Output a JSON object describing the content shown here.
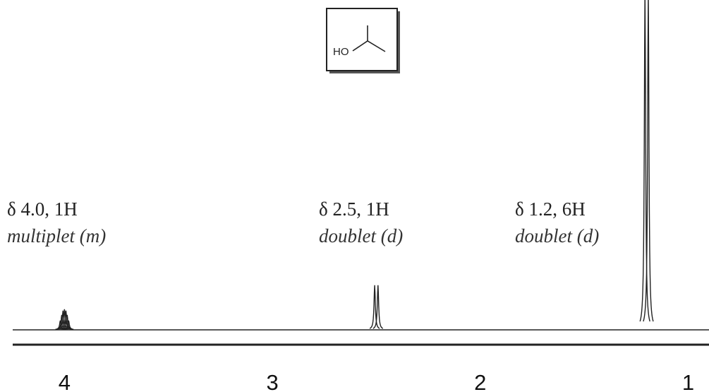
{
  "chart_data": {
    "type": "nmr-spectrum",
    "structure": {
      "label": "HO"
    },
    "xlim": [
      4.31,
      0.9
    ],
    "xticks": [
      4,
      3,
      2,
      1
    ],
    "ylim": [
      0,
      467
    ],
    "color": "#222",
    "peaks": [
      {
        "label": "δ 4.0, 1H",
        "multiplicity": "multiplet (m)",
        "x": [
          4.02,
          4.013,
          4.007,
          4.0,
          3.993,
          3.987,
          3.98
        ],
        "values": [
          12,
          20,
          26,
          28,
          26,
          20,
          12
        ]
      },
      {
        "label": "δ 2.5, 1H",
        "multiplicity": "doublet (d)",
        "x": [
          2.508,
          2.492
        ],
        "values": [
          62,
          62
        ]
      },
      {
        "label": "δ 1.2, 6H",
        "multiplicity": "doublet (d)",
        "x": [
          1.208,
          1.192
        ],
        "values": [
          480,
          480
        ]
      }
    ]
  }
}
